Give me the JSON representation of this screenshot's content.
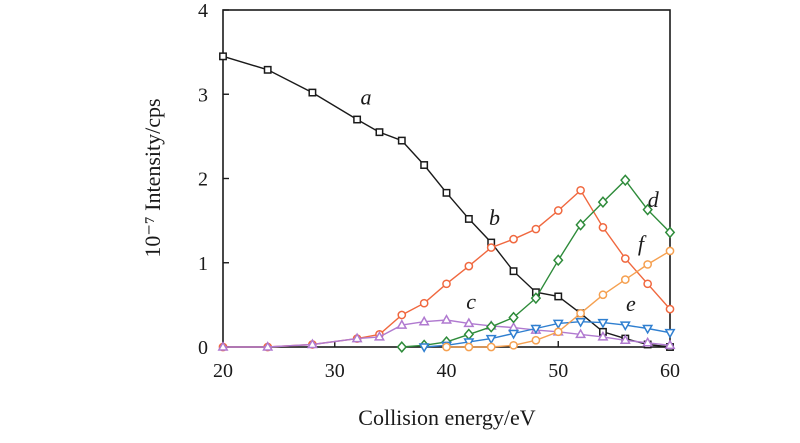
{
  "chart_data": {
    "type": "line",
    "title": "",
    "xlabel": "Collision energy/eV",
    "ylabel": "10⁻⁷ Intensity/cps",
    "xlim": [
      20,
      60
    ],
    "ylim": [
      0,
      4
    ],
    "xticks": [
      20,
      30,
      40,
      50,
      60
    ],
    "yticks": [
      0,
      1,
      2,
      3,
      4
    ],
    "grid": false,
    "legend": "none",
    "series": [
      {
        "name": "a",
        "marker": "square",
        "color": "#1a1a1a",
        "x": [
          20,
          24,
          28,
          32,
          34,
          36,
          38,
          40,
          42,
          44,
          46,
          48,
          50,
          52,
          54,
          56,
          58,
          60
        ],
        "y": [
          3.45,
          3.29,
          3.02,
          2.7,
          2.55,
          2.45,
          2.16,
          1.83,
          1.52,
          1.24,
          0.9,
          0.65,
          0.6,
          0.4,
          0.18,
          0.1,
          0.03,
          0.0
        ]
      },
      {
        "name": "b",
        "marker": "circle",
        "color": "#f0683f",
        "x": [
          20,
          24,
          28,
          32,
          34,
          36,
          38,
          40,
          42,
          44,
          46,
          48,
          50,
          52,
          54,
          56,
          58,
          60
        ],
        "y": [
          0.0,
          0.0,
          0.03,
          0.1,
          0.15,
          0.38,
          0.52,
          0.75,
          0.96,
          1.18,
          1.28,
          1.4,
          1.62,
          1.86,
          1.42,
          1.05,
          0.75,
          0.45
        ]
      },
      {
        "name": "c",
        "marker": "triangle-up",
        "color": "#b07ad0",
        "x": [
          20,
          24,
          28,
          32,
          34,
          36,
          38,
          40,
          42,
          44,
          46,
          48,
          50,
          52,
          54,
          56,
          58,
          60
        ],
        "y": [
          0.0,
          0.0,
          0.03,
          0.1,
          0.12,
          0.26,
          0.3,
          0.32,
          0.28,
          0.25,
          0.23,
          0.2,
          0.18,
          0.15,
          0.12,
          0.08,
          0.05,
          0.02
        ]
      },
      {
        "name": "d",
        "marker": "diamond",
        "color": "#2e8b3a",
        "x": [
          36,
          38,
          40,
          42,
          44,
          46,
          48,
          50,
          52,
          54,
          56,
          58,
          60
        ],
        "y": [
          0.0,
          0.02,
          0.06,
          0.15,
          0.24,
          0.35,
          0.58,
          1.03,
          1.45,
          1.72,
          1.98,
          1.63,
          1.36
        ]
      },
      {
        "name": "e",
        "marker": "triangle-down",
        "color": "#2f7fd0",
        "x": [
          38,
          40,
          42,
          44,
          46,
          48,
          50,
          52,
          54,
          56,
          58,
          60
        ],
        "y": [
          0.0,
          0.02,
          0.06,
          0.1,
          0.16,
          0.22,
          0.28,
          0.3,
          0.29,
          0.26,
          0.22,
          0.17
        ]
      },
      {
        "name": "f",
        "marker": "circle",
        "color": "#f5a050",
        "x": [
          40,
          42,
          44,
          46,
          48,
          50,
          52,
          54,
          56,
          58,
          60
        ],
        "y": [
          0.0,
          0.0,
          0.0,
          0.02,
          0.08,
          0.18,
          0.4,
          0.62,
          0.8,
          0.98,
          1.14
        ]
      }
    ],
    "annotations": [
      {
        "text": "a",
        "x": 32.8,
        "y": 2.88
      },
      {
        "text": "b",
        "x": 44.3,
        "y": 1.45
      },
      {
        "text": "c",
        "x": 42.2,
        "y": 0.45
      },
      {
        "text": "d",
        "x": 58.5,
        "y": 1.66
      },
      {
        "text": "e",
        "x": 56.5,
        "y": 0.43
      },
      {
        "text": "f",
        "x": 57.4,
        "y": 1.14
      }
    ]
  }
}
